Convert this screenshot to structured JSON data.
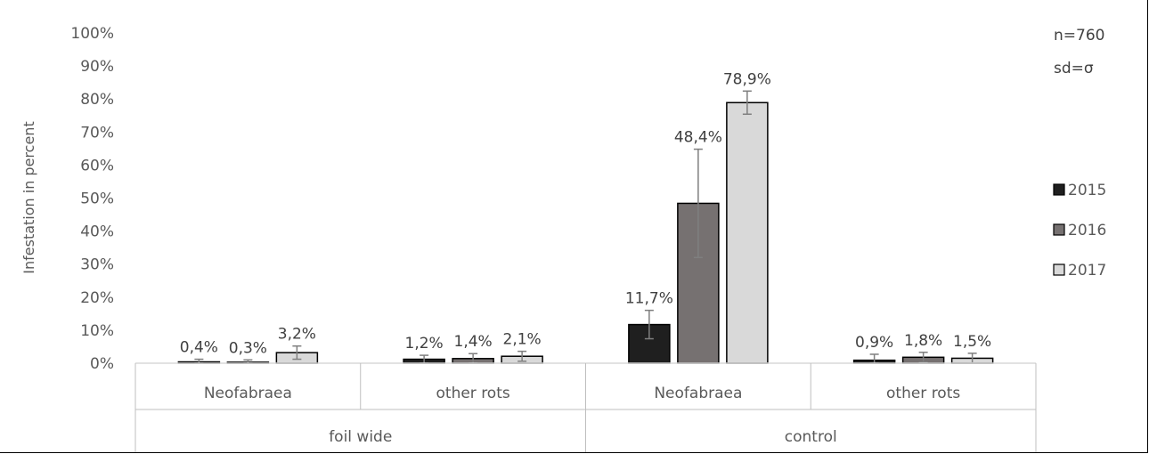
{
  "chart_data": {
    "type": "bar",
    "ylabel": "Infestation in percent",
    "ylim": [
      0,
      100
    ],
    "y_ticks": [
      "0%",
      "10%",
      "20%",
      "30%",
      "40%",
      "50%",
      "60%",
      "70%",
      "80%",
      "90%",
      "100%"
    ],
    "grid": false,
    "legend_position": "right",
    "groups": [
      {
        "label": "foil wide",
        "categories": [
          "Neofabraea",
          "other rots"
        ]
      },
      {
        "label": "control",
        "categories": [
          "Neofabraea",
          "other rots"
        ]
      }
    ],
    "categories": [
      "Neofabraea",
      "other rots",
      "Neofabraea",
      "other rots"
    ],
    "series": [
      {
        "name": "2015",
        "color": "#1f1f1f",
        "values": [
          0.4,
          1.2,
          11.7,
          0.9
        ],
        "labels": [
          "0,4%",
          "1,2%",
          "11,7%",
          "0,9%"
        ],
        "error": [
          0.8,
          1.2,
          4.3,
          1.8
        ]
      },
      {
        "name": "2016",
        "color": "#767171",
        "values": [
          0.3,
          1.4,
          48.4,
          1.8
        ],
        "labels": [
          "0,3%",
          "1,4%",
          "48,4%",
          "1,8%"
        ],
        "error": [
          0.7,
          1.5,
          16.4,
          1.5
        ]
      },
      {
        "name": "2017",
        "color": "#d9d9d9",
        "values": [
          3.2,
          2.1,
          78.9,
          1.5
        ],
        "labels": [
          "3,2%",
          "2,1%",
          "78,9%",
          "1,5%"
        ],
        "error": [
          2.0,
          1.5,
          3.5,
          1.5
        ]
      }
    ],
    "annotations": [
      "n=760",
      "sd=σ"
    ]
  }
}
